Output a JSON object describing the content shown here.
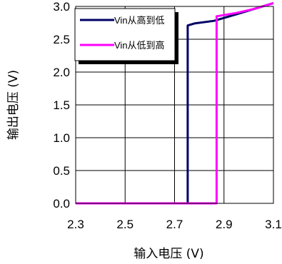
{
  "chart_data": {
    "type": "line",
    "xlabel": "输入电压 (V)",
    "ylabel": "输出电压 (V)",
    "xlim": [
      2.3,
      3.1
    ],
    "ylim": [
      0.0,
      3.0
    ],
    "x_ticks": [
      "2.3",
      "2.5",
      "2.7",
      "2.9",
      "3.1"
    ],
    "y_ticks": [
      "0.0",
      "0.5",
      "1.0",
      "1.5",
      "2.0",
      "2.5",
      "3.0"
    ],
    "grid": true,
    "legend_position": "top-left",
    "series": [
      {
        "name": "Vin从高到低",
        "color": "#000066",
        "x": [
          2.3,
          2.753,
          2.753,
          2.753,
          2.78,
          2.86,
          2.95,
          3.1
        ],
        "y": [
          0.0,
          0.0,
          0.0,
          2.71,
          2.74,
          2.78,
          2.88,
          3.05
        ]
      },
      {
        "name": "Vin从低到高",
        "color": "#ff00ff",
        "x": [
          2.3,
          2.87,
          2.87,
          2.87,
          2.95,
          3.03,
          3.1
        ],
        "y": [
          0.0,
          0.0,
          0.0,
          2.85,
          2.9,
          2.97,
          3.05
        ]
      }
    ]
  }
}
